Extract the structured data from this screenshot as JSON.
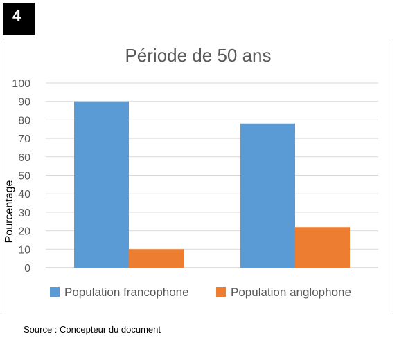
{
  "badge": "4",
  "source": "Source : Concepteur du document",
  "chart_data": {
    "type": "bar",
    "title": "Période de 50 ans",
    "ylabel": "Pourcentage",
    "xlabel": "",
    "categories": [
      "",
      ""
    ],
    "ylim": [
      0,
      100
    ],
    "yticks": [
      0,
      10,
      20,
      30,
      40,
      50,
      60,
      70,
      80,
      90,
      100
    ],
    "grid": true,
    "legend_position": "bottom",
    "series": [
      {
        "name": "Population francophone",
        "values": [
          90,
          78
        ],
        "color": "#5B9BD5"
      },
      {
        "name": "Population anglophone",
        "values": [
          10,
          22
        ],
        "color": "#ED7D31"
      }
    ]
  }
}
